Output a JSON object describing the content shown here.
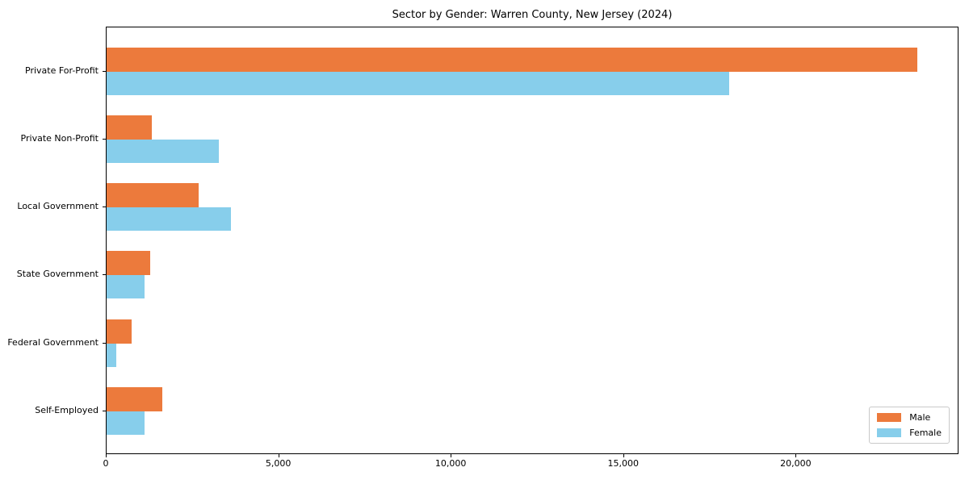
{
  "title": "Sector by Gender: Warren County, New Jersey (2024)",
  "chart_data": {
    "type": "bar",
    "orientation": "horizontal",
    "title": "Sector by Gender: Warren County, New Jersey (2024)",
    "xlabel": "",
    "ylabel": "",
    "grid": false,
    "categories": [
      "Private For-Profit",
      "Private Non-Profit",
      "Local Government",
      "State Government",
      "Federal Government",
      "Self-Employed"
    ],
    "series": [
      {
        "name": "Male",
        "color": "#ec7a3c",
        "values": [
          23540,
          1310,
          2680,
          1270,
          720,
          1620
        ]
      },
      {
        "name": "Female",
        "color": "#87ceeb",
        "values": [
          18090,
          3270,
          3610,
          1110,
          290,
          1100
        ]
      }
    ],
    "xlim": [
      0,
      24720
    ],
    "xticks": [
      0,
      5000,
      10000,
      15000,
      20000
    ],
    "xtick_labels": [
      "0",
      "5,000",
      "10,000",
      "15,000",
      "20,000"
    ],
    "legend": {
      "position": "lower right",
      "entries": [
        "Male",
        "Female"
      ]
    }
  }
}
